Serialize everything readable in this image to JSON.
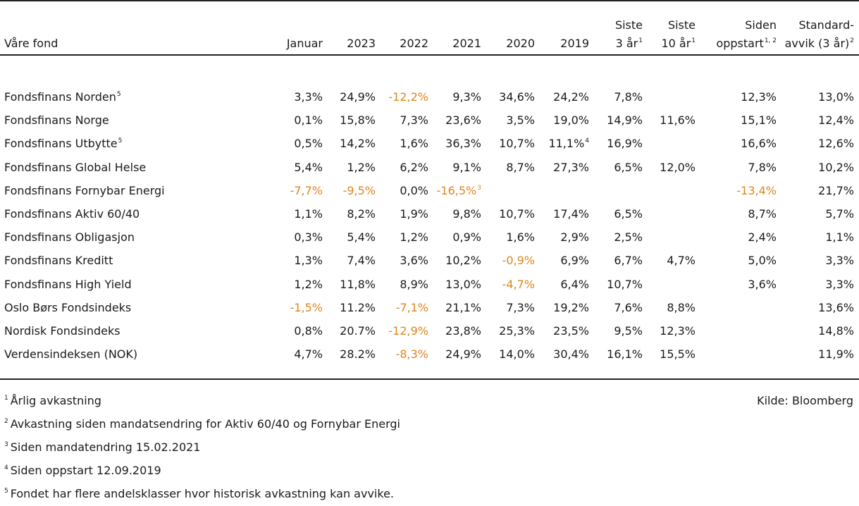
{
  "table": {
    "headers": [
      {
        "lines": [
          "Våre fond"
        ],
        "sup": ""
      },
      {
        "lines": [
          "Januar"
        ],
        "sup": ""
      },
      {
        "lines": [
          "2023"
        ],
        "sup": ""
      },
      {
        "lines": [
          "2022"
        ],
        "sup": ""
      },
      {
        "lines": [
          "2021"
        ],
        "sup": ""
      },
      {
        "lines": [
          "2020"
        ],
        "sup": ""
      },
      {
        "lines": [
          "2019"
        ],
        "sup": ""
      },
      {
        "lines": [
          "Siste",
          "3 år"
        ],
        "sup": "1"
      },
      {
        "lines": [
          "Siste",
          "10 år"
        ],
        "sup": "1"
      },
      {
        "lines": [
          "Siden",
          "oppstart"
        ],
        "sup": "1, 2"
      },
      {
        "lines": [
          "Standard-",
          "avvik (3 år)"
        ],
        "sup": "2"
      }
    ],
    "rows": [
      {
        "name": "Fondsfinans Norden",
        "name_sup": "5",
        "cells": [
          {
            "v": "3,3%"
          },
          {
            "v": "24,9%"
          },
          {
            "v": "-12,2%",
            "neg": true
          },
          {
            "v": "9,3%"
          },
          {
            "v": "34,6%"
          },
          {
            "v": "24,2%"
          },
          {
            "v": "7,8%"
          },
          {
            "v": ""
          },
          {
            "v": "12,3%"
          },
          {
            "v": "13,0%"
          }
        ]
      },
      {
        "name": "Fondsfinans Norge",
        "name_sup": "",
        "cells": [
          {
            "v": "0,1%"
          },
          {
            "v": "15,8%"
          },
          {
            "v": "7,3%"
          },
          {
            "v": "23,6%"
          },
          {
            "v": "3,5%"
          },
          {
            "v": "19,0%"
          },
          {
            "v": "14,9%"
          },
          {
            "v": "11,6%"
          },
          {
            "v": "15,1%"
          },
          {
            "v": "12,4%"
          }
        ]
      },
      {
        "name": "Fondsfinans Utbytte",
        "name_sup": "5",
        "cells": [
          {
            "v": "0,5%"
          },
          {
            "v": "14,2%"
          },
          {
            "v": "1,6%"
          },
          {
            "v": "36,3%"
          },
          {
            "v": "10,7%"
          },
          {
            "v": "11,1%",
            "sup": "4"
          },
          {
            "v": "16,9%"
          },
          {
            "v": ""
          },
          {
            "v": "16,6%"
          },
          {
            "v": "12,6%"
          }
        ]
      },
      {
        "name": "Fondsfinans Global Helse",
        "name_sup": "",
        "cells": [
          {
            "v": "5,4%"
          },
          {
            "v": "1,2%"
          },
          {
            "v": "6,2%"
          },
          {
            "v": "9,1%"
          },
          {
            "v": "8,7%"
          },
          {
            "v": "27,3%"
          },
          {
            "v": "6,5%"
          },
          {
            "v": "12,0%"
          },
          {
            "v": "7,8%"
          },
          {
            "v": "10,2%"
          }
        ]
      },
      {
        "name": "Fondsfinans Fornybar Energi",
        "name_sup": "",
        "cells": [
          {
            "v": "-7,7%",
            "neg": true
          },
          {
            "v": "-9,5%",
            "neg": true
          },
          {
            "v": "0,0%"
          },
          {
            "v": "-16,5%",
            "neg": true,
            "sup": "3"
          },
          {
            "v": ""
          },
          {
            "v": ""
          },
          {
            "v": ""
          },
          {
            "v": ""
          },
          {
            "v": "-13,4%",
            "neg": true
          },
          {
            "v": "21,7%"
          }
        ]
      },
      {
        "name": "Fondsfinans Aktiv 60/40",
        "name_sup": "",
        "cells": [
          {
            "v": "1,1%"
          },
          {
            "v": "8,2%"
          },
          {
            "v": "1,9%"
          },
          {
            "v": "9,8%"
          },
          {
            "v": "10,7%"
          },
          {
            "v": "17,4%"
          },
          {
            "v": "6,5%"
          },
          {
            "v": ""
          },
          {
            "v": "8,7%"
          },
          {
            "v": "5,7%"
          }
        ]
      },
      {
        "name": "Fondsfinans Obligasjon",
        "name_sup": "",
        "cells": [
          {
            "v": "0,3%"
          },
          {
            "v": "5,4%"
          },
          {
            "v": "1,2%"
          },
          {
            "v": "0,9%"
          },
          {
            "v": "1,6%"
          },
          {
            "v": "2,9%"
          },
          {
            "v": "2,5%"
          },
          {
            "v": ""
          },
          {
            "v": "2,4%"
          },
          {
            "v": "1,1%"
          }
        ]
      },
      {
        "name": "Fondsfinans Kreditt",
        "name_sup": "",
        "cells": [
          {
            "v": "1,3%"
          },
          {
            "v": "7,4%"
          },
          {
            "v": "3,6%"
          },
          {
            "v": "10,2%"
          },
          {
            "v": "-0,9%",
            "neg": true
          },
          {
            "v": "6,9%"
          },
          {
            "v": "6,7%"
          },
          {
            "v": "4,7%"
          },
          {
            "v": "5,0%"
          },
          {
            "v": "3,3%"
          }
        ]
      },
      {
        "name": "Fondsfinans High Yield",
        "name_sup": "",
        "cells": [
          {
            "v": "1,2%"
          },
          {
            "v": "11,8%"
          },
          {
            "v": "8,9%"
          },
          {
            "v": "13,0%"
          },
          {
            "v": "-4,7%",
            "neg": true
          },
          {
            "v": "6,4%"
          },
          {
            "v": "10,7%"
          },
          {
            "v": ""
          },
          {
            "v": "3,6%"
          },
          {
            "v": "3,3%"
          }
        ]
      },
      {
        "name": "Oslo Børs Fondsindeks",
        "name_sup": "",
        "cells": [
          {
            "v": "-1,5%",
            "neg": true
          },
          {
            "v": "11.2%"
          },
          {
            "v": "-7,1%",
            "neg": true
          },
          {
            "v": "21,1%"
          },
          {
            "v": "7,3%"
          },
          {
            "v": "19,2%"
          },
          {
            "v": "7,6%"
          },
          {
            "v": "8,8%"
          },
          {
            "v": ""
          },
          {
            "v": "13,6%"
          }
        ]
      },
      {
        "name": "Nordisk Fondsindeks",
        "name_sup": "",
        "cells": [
          {
            "v": "0,8%"
          },
          {
            "v": "20.7%"
          },
          {
            "v": "-12,9%",
            "neg": true
          },
          {
            "v": "23,8%"
          },
          {
            "v": "25,3%"
          },
          {
            "v": "23,5%"
          },
          {
            "v": "9,5%"
          },
          {
            "v": "12,3%"
          },
          {
            "v": ""
          },
          {
            "v": "14,8%"
          }
        ]
      },
      {
        "name": "Verdensindeksen (NOK)",
        "name_sup": "",
        "cells": [
          {
            "v": "4,7%"
          },
          {
            "v": "28.2%"
          },
          {
            "v": "-8,3%",
            "neg": true
          },
          {
            "v": "24,9%"
          },
          {
            "v": "14,0%"
          },
          {
            "v": "30,4%"
          },
          {
            "v": "16,1%"
          },
          {
            "v": "15,5%"
          },
          {
            "v": ""
          },
          {
            "v": "11,9%"
          }
        ]
      }
    ]
  },
  "footnotes": [
    {
      "num": "1",
      "text": "Årlig avkastning"
    },
    {
      "num": "2",
      "text": "Avkastning siden mandatsendring for Aktiv 60/40 og Fornybar Energi"
    },
    {
      "num": "3",
      "text": "Siden mandatendring 15.02.2021"
    },
    {
      "num": "4",
      "text": "Siden oppstart 12.09.2019"
    },
    {
      "num": "5",
      "text": "Fondet har flere andelsklasser hvor historisk avkastning kan avvike."
    }
  ],
  "source": "Kilde: Bloomberg",
  "colors": {
    "negative": "#e0851a",
    "text": "#1a1a1a",
    "rule": "#222222"
  }
}
